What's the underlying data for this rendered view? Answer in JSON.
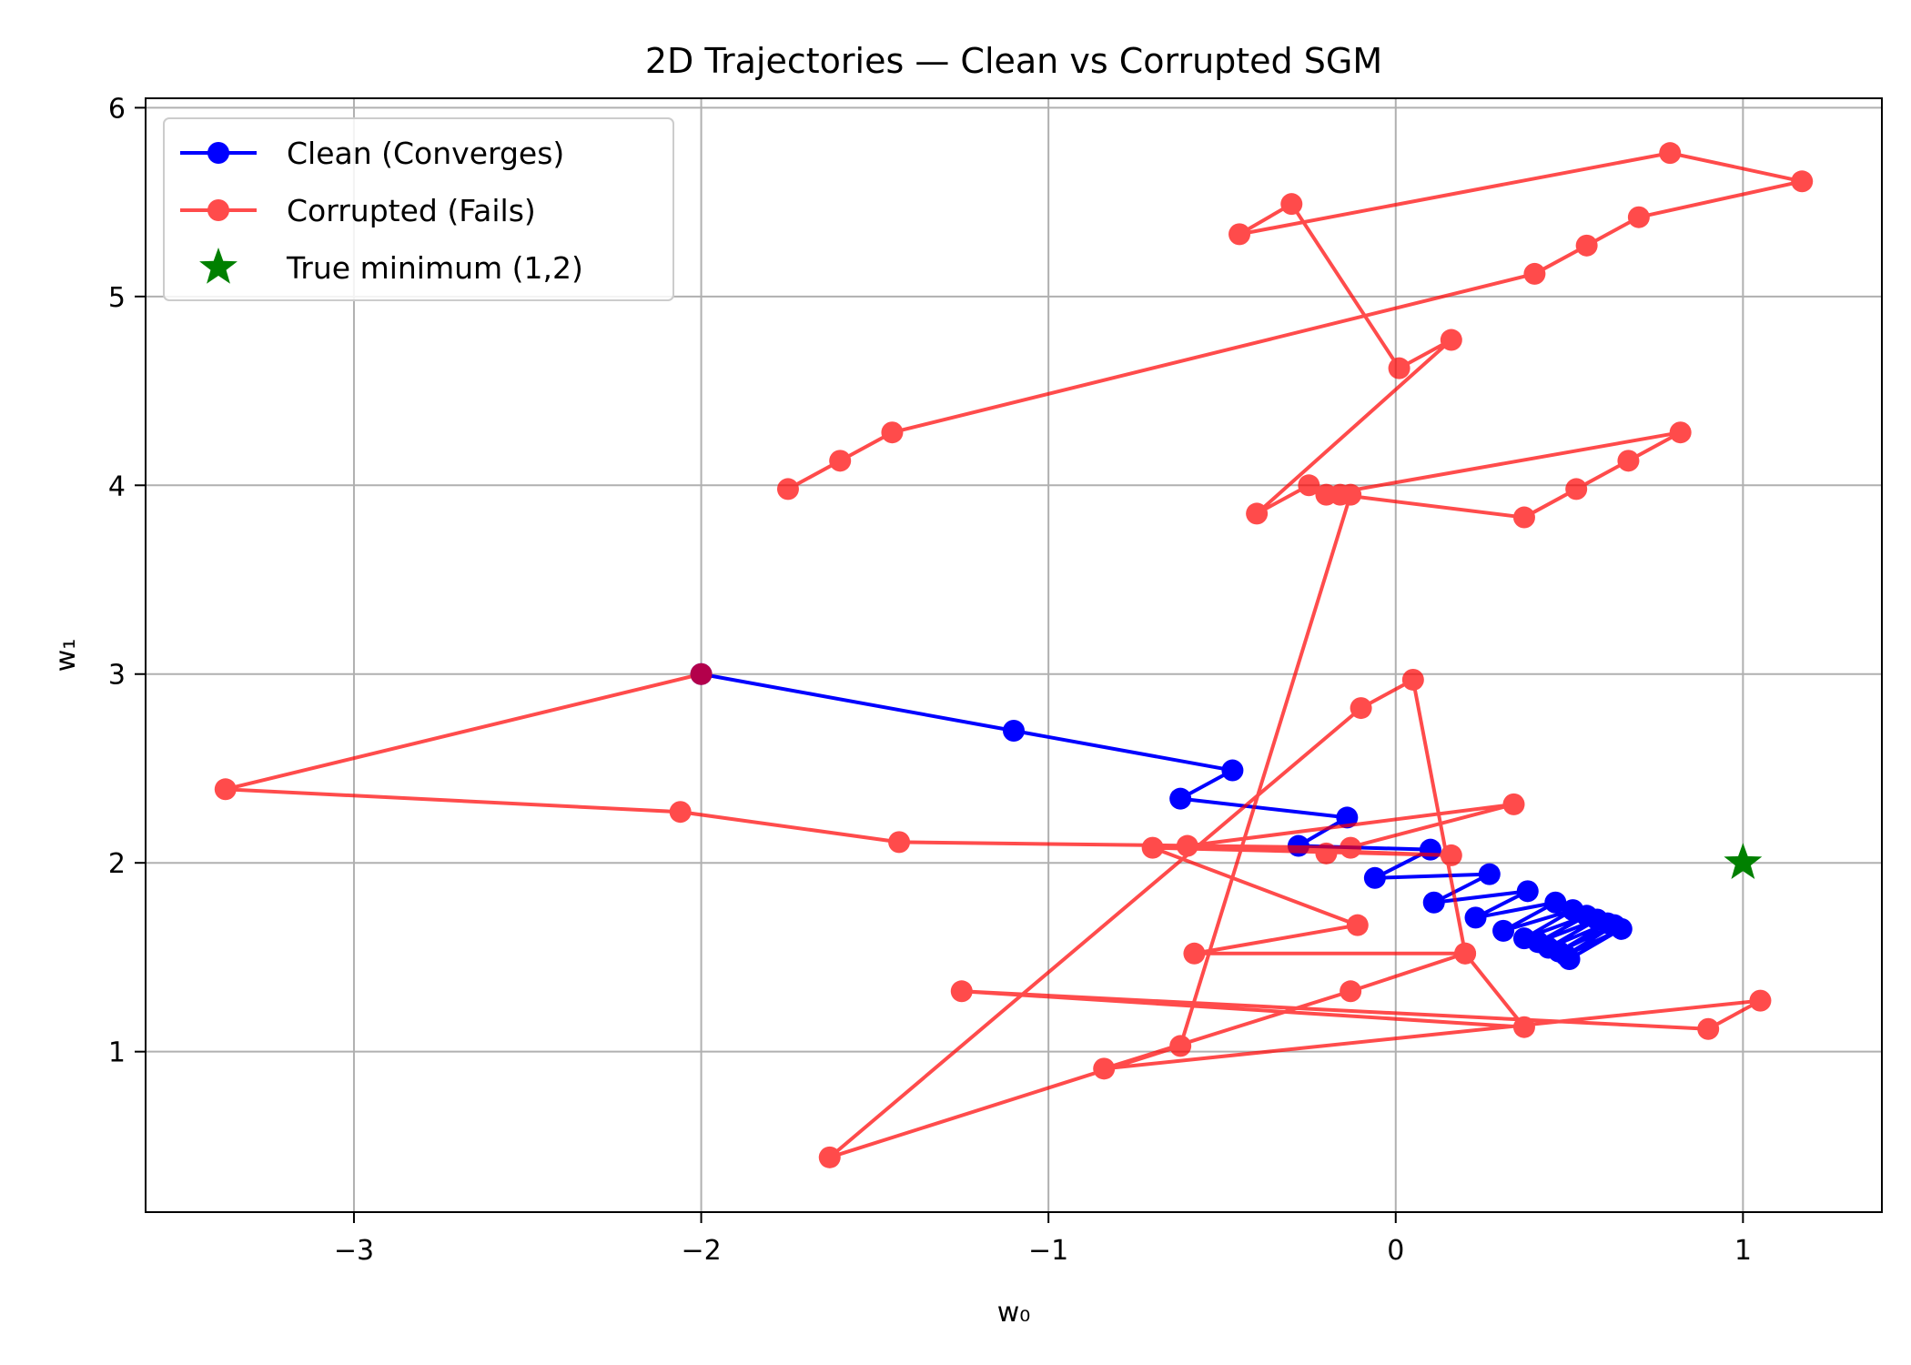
{
  "chart_data": {
    "type": "line",
    "title": "2D Trajectories — Clean vs Corrupted SGM",
    "xlabel": "w₀",
    "ylabel": "w₁",
    "xlim": [
      -3.6,
      1.4
    ],
    "ylim": [
      0.15,
      6.05
    ],
    "xticks": [
      -3,
      -2,
      -1,
      0,
      1
    ],
    "yticks": [
      1,
      2,
      3,
      4,
      5,
      6
    ],
    "xtick_labels": [
      "−3",
      "−2",
      "−1",
      "0",
      "1"
    ],
    "ytick_labels": [
      "1",
      "2",
      "3",
      "4",
      "5",
      "6"
    ],
    "grid": true,
    "legend_position": "upper-left",
    "series": [
      {
        "name": "Clean (Converges)",
        "color": "#0000ff",
        "marker": "circle",
        "points": [
          [
            -2.0,
            3.0
          ],
          [
            -1.1,
            2.7
          ],
          [
            -0.47,
            2.49
          ],
          [
            -0.62,
            2.34
          ],
          [
            -0.14,
            2.24
          ],
          [
            -0.28,
            2.09
          ],
          [
            0.1,
            2.07
          ],
          [
            -0.06,
            1.92
          ],
          [
            0.27,
            1.94
          ],
          [
            0.11,
            1.79
          ],
          [
            0.38,
            1.85
          ],
          [
            0.23,
            1.71
          ],
          [
            0.46,
            1.79
          ],
          [
            0.31,
            1.64
          ],
          [
            0.51,
            1.75
          ],
          [
            0.37,
            1.6
          ],
          [
            0.55,
            1.72
          ],
          [
            0.41,
            1.58
          ],
          [
            0.58,
            1.7
          ],
          [
            0.44,
            1.55
          ],
          [
            0.61,
            1.68
          ],
          [
            0.47,
            1.53
          ],
          [
            0.63,
            1.67
          ],
          [
            0.49,
            1.51
          ],
          [
            0.65,
            1.65
          ],
          [
            0.5,
            1.49
          ]
        ]
      },
      {
        "name": "Corrupted (Fails)",
        "color": "#ff0000",
        "opacity": 0.7,
        "marker": "circle",
        "points": [
          [
            -2.0,
            3.0
          ],
          [
            -3.37,
            2.39
          ],
          [
            -2.06,
            2.27
          ],
          [
            -1.43,
            2.11
          ],
          [
            -0.13,
            2.08
          ],
          [
            -0.2,
            2.05
          ],
          [
            0.34,
            2.31
          ],
          [
            -0.6,
            2.09
          ],
          [
            0.16,
            2.04
          ],
          [
            -0.7,
            2.08
          ],
          [
            -0.11,
            1.67
          ],
          [
            -0.58,
            1.52
          ],
          [
            0.2,
            1.52
          ],
          [
            0.37,
            1.13
          ],
          [
            -1.25,
            1.32
          ],
          [
            0.9,
            1.12
          ],
          [
            1.05,
            1.27
          ],
          [
            -0.84,
            0.91
          ],
          [
            -0.13,
            1.32
          ],
          [
            0.2,
            1.52
          ],
          [
            0.05,
            2.97
          ],
          [
            -0.1,
            2.82
          ],
          [
            -1.63,
            0.44
          ],
          [
            -0.62,
            1.03
          ],
          [
            -0.13,
            3.95
          ],
          [
            -0.16,
            3.95
          ],
          [
            0.37,
            3.83
          ],
          [
            0.52,
            3.98
          ],
          [
            0.67,
            4.13
          ],
          [
            0.82,
            4.28
          ],
          [
            -0.2,
            3.95
          ],
          [
            -0.25,
            4.0
          ],
          [
            -0.4,
            3.85
          ],
          [
            0.16,
            4.77
          ],
          [
            0.01,
            4.62
          ],
          [
            -0.3,
            5.49
          ],
          [
            -0.45,
            5.33
          ],
          [
            0.79,
            5.76
          ],
          [
            1.17,
            5.61
          ],
          [
            0.7,
            5.42
          ],
          [
            0.55,
            5.27
          ],
          [
            0.4,
            5.12
          ],
          [
            -1.45,
            4.28
          ],
          [
            -1.6,
            4.13
          ],
          [
            -1.75,
            3.98
          ]
        ]
      },
      {
        "name": "True minimum (1,2)",
        "color": "#008000",
        "marker": "star",
        "points": [
          [
            1,
            2
          ]
        ]
      }
    ]
  }
}
